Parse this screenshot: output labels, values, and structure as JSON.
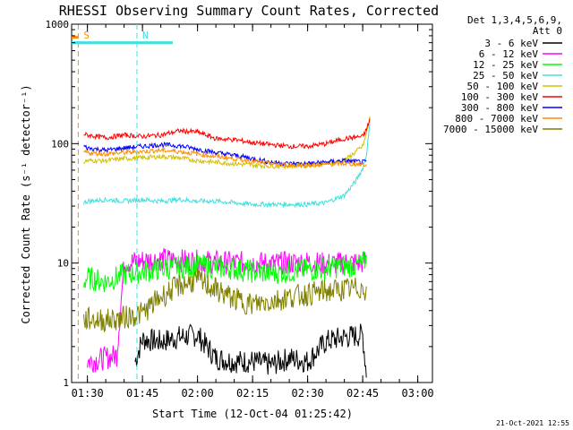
{
  "chart_data": {
    "type": "line",
    "title": "RHESSI Observing Summary Count Rates, Corrected",
    "xlabel": "Start Time (12-Oct-04 01:25:42)",
    "ylabel": "Corrected Count Rate (s⁻¹ detector⁻¹)",
    "y_scale": "log",
    "ylim": [
      1,
      1000
    ],
    "y_ticks": [
      {
        "value": 1,
        "label": "1"
      },
      {
        "value": 10,
        "label": "10"
      },
      {
        "value": 100,
        "label": "100"
      },
      {
        "value": 1000,
        "label": "1000"
      }
    ],
    "xlim": [
      "01:25:42",
      "03:04:00"
    ],
    "x_ticks": [
      "01:30",
      "01:45",
      "02:00",
      "02:15",
      "02:30",
      "02:45",
      "03:00"
    ],
    "legend_title": [
      "Det 1,3,4,5,6,9,",
      "Att 0"
    ],
    "footer": "21-Oct-2021 12:55",
    "markers": [
      {
        "label": "S",
        "time": "01:27:30",
        "level": 700,
        "color": "#ff8c00"
      },
      {
        "label": "N",
        "time": "01:43:30",
        "level": 700,
        "color": "#40e0e0"
      }
    ],
    "series": [
      {
        "name": "3 - 6 keV",
        "color": "#000000",
        "x": [
          "01:43",
          "01:45",
          "01:50",
          "01:55",
          "02:00",
          "02:05",
          "02:10",
          "02:15",
          "02:20",
          "02:25",
          "02:30",
          "02:35",
          "02:40",
          "02:45",
          "02:46"
        ],
        "y": [
          1.5,
          2.3,
          2.2,
          2.4,
          2.5,
          1.6,
          1.5,
          1.5,
          1.4,
          1.6,
          1.5,
          2.2,
          2.4,
          2.5,
          1.2
        ]
      },
      {
        "name": "6 - 12 keV",
        "color": "#ff00ff",
        "x": [
          "01:30",
          "01:35",
          "01:38",
          "01:40",
          "01:45",
          "01:50",
          "01:55",
          "02:00",
          "02:05",
          "02:10",
          "02:15",
          "02:20",
          "02:25",
          "02:30",
          "02:35",
          "02:40",
          "02:45",
          "02:46"
        ],
        "y": [
          1.5,
          1.6,
          1.7,
          10,
          10.5,
          10.8,
          10.5,
          10.3,
          10.2,
          10,
          10.1,
          9.9,
          10,
          10.2,
          9.8,
          10,
          10.1,
          11
        ]
      },
      {
        "name": "12 - 25 keV",
        "color": "#00ff00",
        "x": [
          "01:29",
          "01:30",
          "01:35",
          "01:40",
          "01:45",
          "01:50",
          "01:55",
          "02:00",
          "02:05",
          "02:10",
          "02:15",
          "02:20",
          "02:25",
          "02:30",
          "02:35",
          "02:40",
          "02:45",
          "02:46"
        ],
        "y": [
          7,
          7.5,
          7,
          8,
          8.5,
          9,
          9.2,
          9.5,
          9.2,
          9,
          8.5,
          8.3,
          8.5,
          8.8,
          9,
          9.5,
          9.5,
          11
        ]
      },
      {
        "name": "25 - 50 keV",
        "color": "#40e0e0",
        "x": [
          "01:29",
          "01:30",
          "01:35",
          "01:40",
          "01:45",
          "01:50",
          "01:55",
          "02:00",
          "02:05",
          "02:10",
          "02:15",
          "02:20",
          "02:25",
          "02:30",
          "02:35",
          "02:40",
          "02:43",
          "02:45",
          "02:46",
          "02:47"
        ],
        "y": [
          32,
          33,
          34,
          33,
          34,
          33,
          34,
          33,
          33,
          32,
          31,
          31,
          31,
          31,
          32,
          37,
          48,
          62,
          80,
          150
        ]
      },
      {
        "name": "50 - 100 keV",
        "color": "#d4c000",
        "x": [
          "01:29",
          "01:30",
          "01:35",
          "01:40",
          "01:45",
          "01:50",
          "01:55",
          "02:00",
          "02:05",
          "02:10",
          "02:15",
          "02:20",
          "02:25",
          "02:30",
          "02:35",
          "02:40",
          "02:45",
          "02:46",
          "02:47"
        ],
        "y": [
          70,
          72,
          72,
          75,
          76,
          78,
          76,
          72,
          70,
          68,
          66,
          65,
          65,
          66,
          68,
          72,
          95,
          120,
          170
        ]
      },
      {
        "name": "100 - 300 keV",
        "color": "#ff0000",
        "x": [
          "01:29",
          "01:30",
          "01:35",
          "01:40",
          "01:45",
          "01:50",
          "01:55",
          "02:00",
          "02:05",
          "02:10",
          "02:15",
          "02:20",
          "02:25",
          "02:30",
          "02:35",
          "02:40",
          "02:45",
          "02:46",
          "02:47"
        ],
        "y": [
          120,
          118,
          112,
          118,
          115,
          118,
          128,
          125,
          110,
          108,
          102,
          98,
          95,
          95,
          100,
          110,
          115,
          130,
          160
        ]
      },
      {
        "name": "300 - 800 keV",
        "color": "#0000ff",
        "x": [
          "01:29",
          "01:30",
          "01:35",
          "01:40",
          "01:45",
          "01:50",
          "01:55",
          "02:00",
          "02:05",
          "02:10",
          "02:15",
          "02:20",
          "02:25",
          "02:30",
          "02:35",
          "02:40",
          "02:45",
          "02:46"
        ],
        "y": [
          95,
          92,
          88,
          92,
          95,
          98,
          96,
          90,
          84,
          80,
          75,
          70,
          68,
          68,
          70,
          72,
          70,
          70
        ]
      },
      {
        "name": "800 - 7000 keV",
        "color": "#ff8c00",
        "x": [
          "01:29",
          "01:30",
          "01:35",
          "01:40",
          "01:45",
          "01:50",
          "01:55",
          "02:00",
          "02:05",
          "02:10",
          "02:15",
          "02:20",
          "02:25",
          "02:30",
          "02:35",
          "02:40",
          "02:45",
          "02:46"
        ],
        "y": [
          85,
          84,
          82,
          84,
          86,
          88,
          86,
          82,
          78,
          75,
          71,
          68,
          66,
          66,
          67,
          68,
          67,
          66
        ]
      },
      {
        "name": "7000 - 15000 keV",
        "color": "#808000",
        "x": [
          "01:29",
          "01:30",
          "01:35",
          "01:40",
          "01:45",
          "01:50",
          "01:55",
          "02:00",
          "02:05",
          "02:10",
          "02:15",
          "02:20",
          "02:25",
          "02:30",
          "02:35",
          "02:40",
          "02:45",
          "02:46"
        ],
        "y": [
          3.3,
          3.4,
          3.3,
          3.5,
          3.8,
          5.2,
          6.5,
          7.2,
          6,
          5,
          4.5,
          4.8,
          5.2,
          5.5,
          5.8,
          6,
          6.2,
          6
        ]
      }
    ]
  }
}
